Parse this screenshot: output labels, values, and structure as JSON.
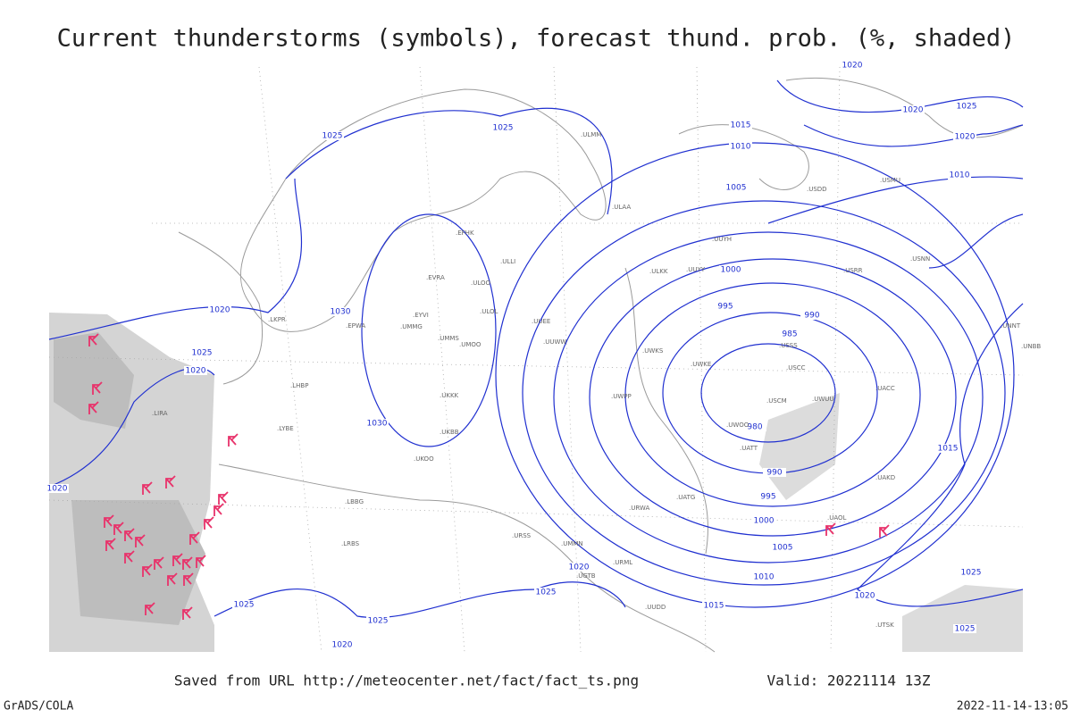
{
  "title": "Current thunderstorms (symbols), forecast thund. prob. (%, shaded)",
  "footer": {
    "saved": "Saved from URL http://meteocenter.net/fact/fact_ts.png",
    "valid": "Valid: 20221114 13Z",
    "credit": "GrADS/COLA",
    "timestamp": "2022-11-14-13:05"
  },
  "isobar_labels": [
    "1025",
    "1025",
    "1020",
    "1025",
    "1020",
    "1030",
    "1030",
    "1020",
    "1015",
    "1010",
    "1005",
    "1000",
    "995",
    "990",
    "985",
    "980",
    "990",
    "995",
    "1000",
    "1005",
    "1010",
    "1015",
    "1020",
    "1025",
    "1025",
    "1025",
    "1020",
    "1020",
    "1020",
    "1025",
    "1020",
    "1010",
    "1015",
    "1020",
    "1025",
    "1025"
  ],
  "stations": [
    ".ULMM",
    ".ULOO",
    ".ULAA",
    ".EFHK",
    ".ULLI",
    ".ULOL",
    ".UMMG",
    ".UMMS",
    ".UMOO",
    ".UKBB",
    ".UKKK",
    ".UUEE",
    ".UUWW",
    ".UWPP",
    ".UWKS",
    ".UWKE",
    ".USSS",
    ".USCC",
    ".USCM",
    ".UWOO",
    ".UWUU",
    ".UATT",
    ".URWA",
    ".URSS",
    ".UMMN",
    ".UKOO",
    ".LRBS",
    ".LBBG",
    ".EVRA",
    ".EYVI",
    ".EPWA",
    ".LKPR",
    ".LHBP",
    ".LYBE",
    ".LIRA",
    ".UUYY",
    ".ULKK",
    ".USRR",
    ".USNN",
    ".UACC",
    ".UATG",
    ".UTSK",
    ".UGTB",
    ".URML",
    ".UUDD",
    ".UUYH",
    ".USDD",
    ".USMU",
    ".UNBB",
    ".UNNT",
    ".UAKD",
    ".UAOL"
  ]
}
